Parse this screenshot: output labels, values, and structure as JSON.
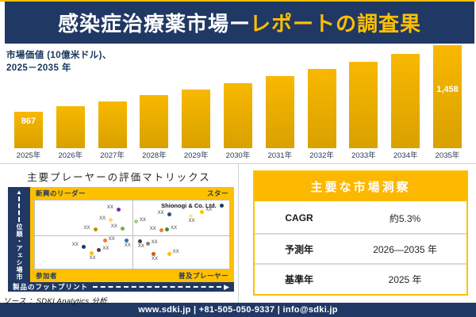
{
  "header": {
    "title_main": "感染症治療薬市場",
    "title_dash": "ー",
    "title_accent": "レポートの調査果"
  },
  "chart_data": [
    {
      "type": "bar",
      "title": "市場価値 (10億米ドル)、2025－2035 年",
      "subtitle_line1": "市場価値 (10億米ドル)、",
      "subtitle_line2": "2025－2035 年",
      "categories": [
        "2025年",
        "2026年",
        "2027年",
        "2028年",
        "2029年",
        "2030年",
        "2031年",
        "2032年",
        "2033年",
        "2034年",
        "2035年"
      ],
      "values": [
        867,
        913,
        961,
        1012,
        1066,
        1122,
        1182,
        1245,
        1311,
        1380,
        1458
      ],
      "data_labels": {
        "2025年": "867",
        "2035年": "1,458"
      },
      "bar_color": "#E3A800",
      "ylim": [
        543,
        1458
      ],
      "grid": false,
      "legend": false
    },
    {
      "type": "scatter",
      "title": "主要プレーヤーの評価マトリックス",
      "xlabel": "製品のフットプリント",
      "ylabel": "市場シェア・順位",
      "quadrants": {
        "top_left": "新興のリーダー",
        "top_right": "スター",
        "bottom_left": "参加者",
        "bottom_right": "普及プレーヤー"
      },
      "points": [
        {
          "x": 42,
          "y": 10,
          "color": "#7030A0",
          "label": "XX",
          "label_pos": "left"
        },
        {
          "x": 38,
          "y": 26,
          "color": "#FFD966",
          "label": "XX",
          "label_pos": "left"
        },
        {
          "x": 30,
          "y": 40,
          "color": "#BF8F00",
          "label": "XX",
          "label_pos": "left"
        },
        {
          "x": 44,
          "y": 38,
          "color": "#70AD47",
          "label": "XX",
          "label_pos": "left"
        },
        {
          "x": 24,
          "y": 65,
          "color": "#1F3864",
          "label": "XX",
          "label_pos": "left"
        },
        {
          "x": 35,
          "y": 56,
          "color": "#ED7D31",
          "label": "XX",
          "label_pos": "right"
        },
        {
          "x": 46,
          "y": 56,
          "color": "#2E75B6",
          "label": "XX",
          "label_pos": "below"
        },
        {
          "x": 28,
          "y": 74,
          "color": "#FFC000",
          "label": "XX",
          "label_pos": "below"
        },
        {
          "x": 32,
          "y": 70,
          "color": "#404040",
          "label": "XX",
          "label_pos": "right"
        },
        {
          "x": 51,
          "y": 28,
          "color": "#A9D18E",
          "label": "XX",
          "label_pos": "right"
        },
        {
          "x": 68,
          "y": 18,
          "color": "#2E4B8F",
          "label": "XX",
          "label_pos": "left"
        },
        {
          "x": 79,
          "y": 20,
          "color": "#FFE699",
          "label": "XX",
          "label_pos": "below"
        },
        {
          "x": 85,
          "y": 14,
          "color": "#FFC000",
          "label": "XX",
          "label_pos": "right"
        },
        {
          "x": 64,
          "y": 41,
          "color": "#ED7D31",
          "label": "XX",
          "label_pos": "left"
        },
        {
          "x": 67,
          "y": 40,
          "color": "#548235",
          "label": "XX",
          "label_pos": "right"
        },
        {
          "x": 53,
          "y": 57,
          "color": "#404040",
          "label": "XX",
          "label_pos": "below"
        },
        {
          "x": 57,
          "y": 61,
          "color": "#808080",
          "label": "XX",
          "label_pos": "right"
        },
        {
          "x": 60,
          "y": 76,
          "color": "#C55A11",
          "label": "XX",
          "label_pos": "below"
        },
        {
          "x": 68,
          "y": 75,
          "color": "#FFC000",
          "label": "XX",
          "label_pos": "right"
        },
        {
          "x": 95,
          "y": 5,
          "color": "#1F3864",
          "label": "Shionogi & Co. Ltd.",
          "label_pos": "left",
          "named": true
        }
      ]
    }
  ],
  "insights_table": {
    "header": "主要な市場洞察",
    "rows": [
      {
        "label": "CAGR",
        "value": "約5.3%"
      },
      {
        "label": "予測年",
        "value": "2026—2035 年"
      },
      {
        "label": "基準年",
        "value": "2025 年"
      }
    ]
  },
  "source": "ソース ：SDKI Analytics 分析",
  "footer": {
    "text": "www.sdki.jp | +81-505-050-9337 | info@sdki.jp"
  },
  "colors": {
    "navy": "#203864",
    "gold": "#FFC000",
    "bar_top": "#F8B800",
    "bar_bottom": "#D9A100"
  }
}
